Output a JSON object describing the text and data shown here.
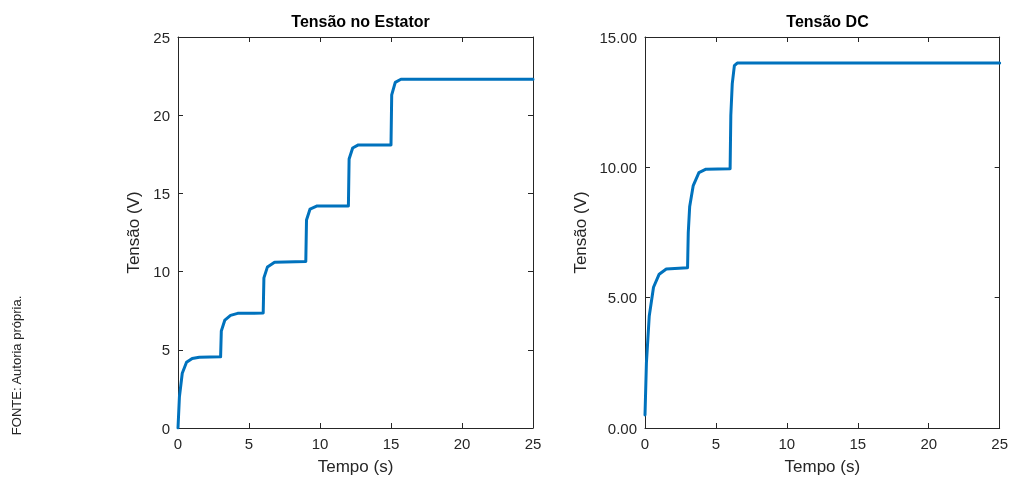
{
  "chart_data": [
    {
      "type": "line",
      "title": "Tensão no Estator",
      "xlabel": "Tempo (s)",
      "ylabel": "Tensão (V)",
      "annotations": [
        "FONTE: Autoria própria."
      ],
      "xlim": [
        0,
        25
      ],
      "xticks": [
        0,
        5,
        10,
        15,
        20,
        25
      ],
      "ylim": [
        0,
        25
      ],
      "yticks": [
        0,
        5,
        10,
        15,
        20,
        25
      ],
      "marker": "none",
      "line_style": "solid",
      "series": [
        {
          "color": "#0072bd",
          "x": [
            0,
            0.1,
            0.3,
            0.6,
            1,
            1.5,
            3,
            3.05,
            3.3,
            3.7,
            4.2,
            6,
            6.05,
            6.3,
            6.8,
            9,
            9.05,
            9.3,
            9.8,
            12,
            12.05,
            12.3,
            12.7,
            15,
            15.05,
            15.3,
            15.7,
            25
          ],
          "values": [
            0,
            2.0,
            3.5,
            4.2,
            4.45,
            4.53,
            4.55,
            6.2,
            6.9,
            7.2,
            7.33,
            7.35,
            9.6,
            10.3,
            10.6,
            10.65,
            13.3,
            14.0,
            14.2,
            14.2,
            17.2,
            17.9,
            18.1,
            18.1,
            21.3,
            22.1,
            22.3,
            22.3
          ]
        }
      ]
    },
    {
      "type": "line",
      "title": "Tensão DC",
      "xlabel": "Tempo (s)",
      "ylabel": "Tensão (V)",
      "xlim": [
        0,
        25
      ],
      "xticks": [
        0,
        5,
        10,
        15,
        20,
        25
      ],
      "ylim": [
        0,
        15
      ],
      "yticks": [
        {
          "value": 0,
          "label": "0.00"
        },
        {
          "value": 5,
          "label": "5.00"
        },
        {
          "value": 10,
          "label": "10.00"
        },
        {
          "value": 15,
          "label": "15.00"
        }
      ],
      "marker": "none",
      "line_style": "solid",
      "series": [
        {
          "color": "#0072bd",
          "x": [
            0,
            0.1,
            0.3,
            0.6,
            1,
            1.5,
            3,
            3.05,
            3.15,
            3.4,
            3.8,
            4.3,
            6,
            6.05,
            6.15,
            6.3,
            6.5,
            25
          ],
          "values": [
            0.5,
            2.5,
            4.3,
            5.4,
            5.9,
            6.1,
            6.15,
            7.5,
            8.5,
            9.3,
            9.8,
            9.93,
            9.95,
            12.0,
            13.2,
            13.9,
            14.0,
            14.0
          ]
        }
      ]
    }
  ]
}
